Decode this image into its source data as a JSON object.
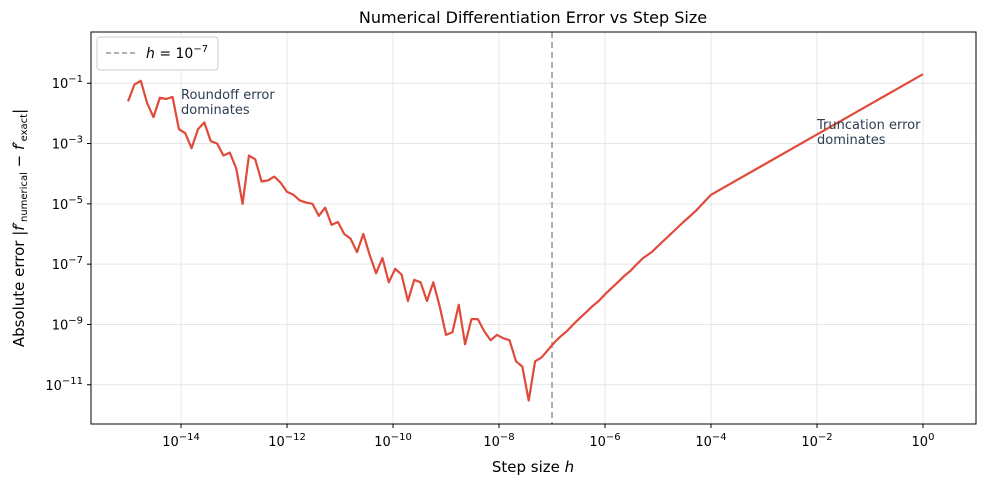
{
  "chart_data": {
    "type": "line",
    "title": "Numerical Differentiation Error vs Step Size",
    "xlabel": "Step size h",
    "ylabel": "Absolute error |f′numerical − f′exact|",
    "x_scale": "log",
    "y_scale": "log",
    "xlim": [
      2e-16,
      10
    ],
    "ylim": [
      5e-13,
      5
    ],
    "grid": true,
    "x_ticks": [
      {
        "value": 1e-14,
        "base": "10",
        "exp": "−14"
      },
      {
        "value": 1e-12,
        "base": "10",
        "exp": "−12"
      },
      {
        "value": 1e-10,
        "base": "10",
        "exp": "−10"
      },
      {
        "value": 1e-08,
        "base": "10",
        "exp": "−8"
      },
      {
        "value": 1e-06,
        "base": "10",
        "exp": "−6"
      },
      {
        "value": 0.0001,
        "base": "10",
        "exp": "−4"
      },
      {
        "value": 0.01,
        "base": "10",
        "exp": "−2"
      },
      {
        "value": 1,
        "base": "10",
        "exp": "0"
      }
    ],
    "y_ticks": [
      {
        "value": 1e-11,
        "base": "10",
        "exp": "−11"
      },
      {
        "value": 1e-09,
        "base": "10",
        "exp": "−9"
      },
      {
        "value": 1e-07,
        "base": "10",
        "exp": "−7"
      },
      {
        "value": 1e-05,
        "base": "10",
        "exp": "−5"
      },
      {
        "value": 0.001,
        "base": "10",
        "exp": "−3"
      },
      {
        "value": 0.1,
        "base": "10",
        "exp": "−1"
      }
    ],
    "series": [
      {
        "name": "",
        "color": "#e04a3a",
        "x": [
          1e-15,
          1.32e-15,
          1.74e-15,
          2.29e-15,
          3.02e-15,
          3.98e-15,
          5.25e-15,
          6.92e-15,
          9.12e-15,
          1.2e-14,
          1.58e-14,
          2.09e-14,
          2.75e-14,
          3.63e-14,
          4.79e-14,
          6.31e-14,
          8.32e-14,
          1.1e-13,
          1.45e-13,
          1.91e-13,
          2.51e-13,
          3.31e-13,
          4.37e-13,
          5.75e-13,
          7.59e-13,
          1e-12,
          1.32e-12,
          1.74e-12,
          2.29e-12,
          3.02e-12,
          3.98e-12,
          5.25e-12,
          6.92e-12,
          9.12e-12,
          1.2e-11,
          1.58e-11,
          2.09e-11,
          2.75e-11,
          3.63e-11,
          4.79e-11,
          6.31e-11,
          8.32e-11,
          1.1e-10,
          1.45e-10,
          1.91e-10,
          2.51e-10,
          3.31e-10,
          4.37e-10,
          5.75e-10,
          7.59e-10,
          1e-09,
          1.32e-09,
          1.74e-09,
          2.29e-09,
          3.02e-09,
          3.98e-09,
          5.25e-09,
          6.92e-09,
          9.12e-09,
          1.2e-08,
          1.58e-08,
          2.09e-08,
          2.75e-08,
          3.63e-08,
          4.79e-08,
          6.31e-08,
          8.32e-08,
          1.1e-07,
          1.45e-07,
          1.91e-07,
          2.51e-07,
          3.31e-07,
          4.37e-07,
          5.75e-07,
          7.59e-07,
          1e-06,
          1.32e-06,
          1.74e-06,
          2.29e-06,
          3.02e-06,
          3.98e-06,
          5.25e-06,
          7.59e-06,
          1e-05,
          1.74e-05,
          3.02e-05,
          5.25e-05,
          0.0001,
          0.001,
          0.01,
          0.1,
          1
        ],
        "y": [
          0.025,
          0.09,
          0.12,
          0.022,
          0.0075,
          0.033,
          0.03,
          0.035,
          0.003,
          0.0022,
          0.0007,
          0.003,
          0.005,
          0.0012,
          0.001,
          0.0004,
          0.0005,
          0.00015,
          1e-05,
          0.0004,
          0.0003,
          5.5e-05,
          6e-05,
          8e-05,
          5e-05,
          2.5e-05,
          2e-05,
          1.3e-05,
          1.1e-05,
          1e-05,
          4e-06,
          7.5e-06,
          2e-06,
          2.5e-06,
          1e-06,
          7e-07,
          2.5e-07,
          1e-06,
          2e-07,
          5e-08,
          1.6e-07,
          2.5e-08,
          7e-08,
          4.5e-08,
          6e-09,
          3e-08,
          2.5e-08,
          6e-09,
          2.5e-08,
          4e-09,
          4.5e-10,
          5.5e-10,
          4.5e-09,
          2.2e-10,
          1.5e-09,
          1.5e-09,
          6e-10,
          3e-10,
          4.5e-10,
          3.5e-10,
          3e-10,
          6e-11,
          4e-11,
          3e-12,
          6e-11,
          8e-11,
          1.4e-10,
          2.5e-10,
          4e-10,
          6e-10,
          1e-09,
          1.6e-09,
          2.5e-09,
          4e-09,
          6e-09,
          1e-08,
          1.6e-08,
          2.5e-08,
          4e-08,
          6e-08,
          1e-07,
          1.6e-07,
          2.5e-07,
          4e-07,
          1e-06,
          2.5e-06,
          6e-06,
          2e-05,
          0.0002,
          0.002,
          0.02,
          0.2
        ]
      }
    ],
    "reference_line": {
      "x": 1e-07,
      "color": "#999999",
      "style": "dashed"
    },
    "legend": {
      "placement": "top-left",
      "entries": [
        {
          "label_prefix": "h = 10",
          "label_exp": "−7"
        }
      ]
    },
    "annotations": [
      {
        "lines": [
          "Roundoff error",
          "dominates"
        ],
        "x": 1e-14,
        "y": 0.03
      },
      {
        "lines": [
          "Truncation error",
          "dominates"
        ],
        "x": 0.01,
        "y": 0.003
      }
    ]
  }
}
